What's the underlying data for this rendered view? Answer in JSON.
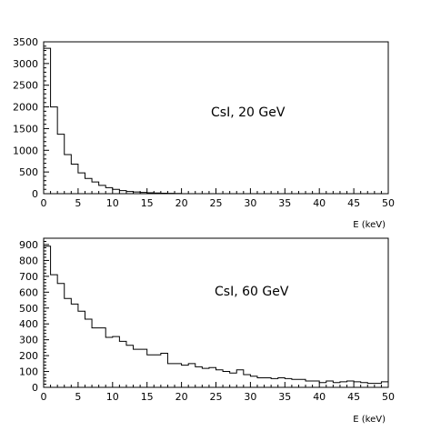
{
  "chart_data": [
    {
      "type": "histogram",
      "annotation": "CsI, 20 GeV",
      "xlabel": "E (keV)",
      "ylabel": "",
      "xlim": [
        0,
        50
      ],
      "ylim": [
        0,
        3500
      ],
      "grid": false,
      "bin_width": 1,
      "x_ticks": [
        0,
        5,
        10,
        15,
        20,
        25,
        30,
        35,
        40,
        45,
        50
      ],
      "y_ticks": [
        0,
        500,
        1000,
        1500,
        2000,
        2500,
        3000,
        3500
      ],
      "bin_edges_start": 0,
      "values": [
        3350,
        2000,
        1370,
        900,
        680,
        480,
        350,
        270,
        190,
        140,
        100,
        70,
        50,
        40,
        30,
        20,
        15,
        10,
        8,
        5
      ]
    },
    {
      "type": "histogram",
      "annotation": "CsI, 60 GeV",
      "xlabel": "E (keV)",
      "ylabel": "",
      "xlim": [
        0,
        50
      ],
      "ylim": [
        0,
        940
      ],
      "grid": false,
      "bin_width": 1,
      "x_ticks": [
        0,
        5,
        10,
        15,
        20,
        25,
        30,
        35,
        40,
        45,
        50
      ],
      "y_ticks": [
        0,
        100,
        200,
        300,
        400,
        500,
        600,
        700,
        800,
        900
      ],
      "bin_edges_start": 0,
      "values": [
        890,
        710,
        655,
        560,
        525,
        480,
        430,
        375,
        375,
        315,
        320,
        290,
        265,
        240,
        240,
        205,
        205,
        215,
        150,
        150,
        140,
        150,
        130,
        120,
        125,
        110,
        100,
        90,
        110,
        80,
        70,
        60,
        60,
        55,
        60,
        55,
        50,
        50,
        40,
        40,
        30,
        40,
        30,
        35,
        40,
        35,
        30,
        25,
        25,
        35
      ]
    }
  ]
}
